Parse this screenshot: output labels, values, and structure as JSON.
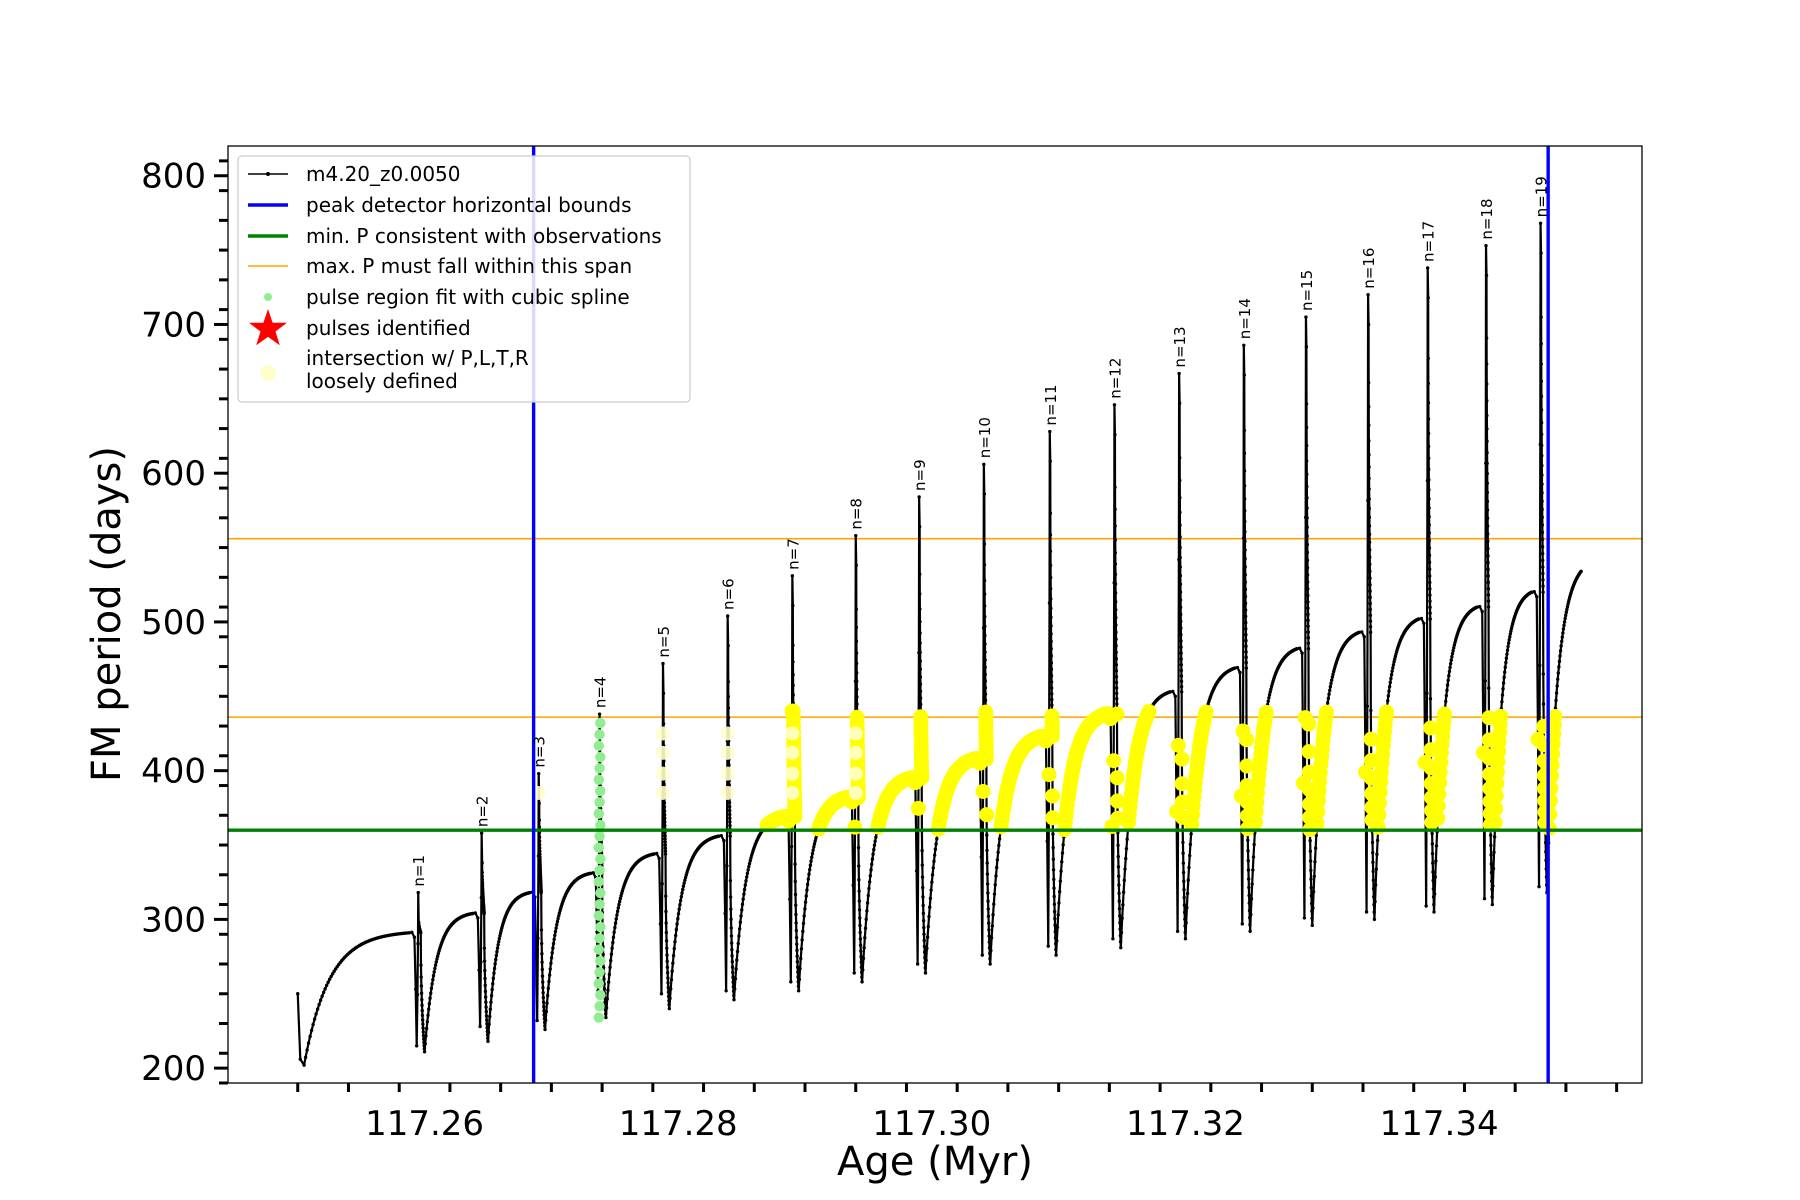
{
  "chart_data": {
    "type": "line",
    "title": "",
    "xlabel": "Age (Myr)",
    "ylabel": "FM period (days)",
    "xlim": [
      117.2445,
      117.356
    ],
    "ylim": [
      190,
      820
    ],
    "xticks": [
      117.26,
      117.28,
      117.3,
      117.32,
      117.34
    ],
    "xtick_labels": [
      "117.26",
      "117.28",
      "117.30",
      "117.32",
      "117.34"
    ],
    "xminor_step": 0.004,
    "yticks": [
      200,
      300,
      400,
      500,
      600,
      700,
      800
    ],
    "ytick_labels": [
      "200",
      "300",
      "400",
      "500",
      "600",
      "700",
      "800"
    ],
    "yminor_step": 20,
    "grid": false,
    "legend_position": "top-left",
    "colors": {
      "model_line": "#000000",
      "peak_bounds": "#0000ff",
      "min_period": "#008000",
      "max_period_span": "#ffa500",
      "spline_fit": "#90ee90",
      "pulses_identified": "#ff0000",
      "intersection": "#ffff00",
      "loosely_defined": "#ffffcc"
    },
    "legend": [
      {
        "key": "model",
        "label": "m4.20_z0.0050"
      },
      {
        "key": "bounds",
        "label": "peak detector horizontal bounds"
      },
      {
        "key": "minP",
        "label": "min. P consistent with observations"
      },
      {
        "key": "maxP",
        "label": "max. P must fall within this span"
      },
      {
        "key": "spline",
        "label": "pulse region fit with cubic spline"
      },
      {
        "key": "pulses",
        "label": "pulses identified"
      },
      {
        "key": "intersection",
        "label": "intersection w/ P,L,T,R"
      },
      {
        "key": "loose",
        "label": "loosely defined"
      }
    ],
    "vertical_bounds_x": [
      117.2686,
      117.3486
    ],
    "min_period_y": 360,
    "max_period_span_y": [
      436,
      556
    ],
    "start": {
      "x": 117.25,
      "y": 250
    },
    "end": {
      "x": 117.3512,
      "y": 534
    },
    "pulses": [
      {
        "label": "n=1",
        "x": 117.2595,
        "peak": 318,
        "drop": 215,
        "trough": 211,
        "pre": 291
      },
      {
        "label": "n=2",
        "x": 117.2645,
        "peak": 358,
        "drop": 228,
        "trough": 218,
        "pre": 304
      },
      {
        "label": "n=3",
        "x": 117.269,
        "peak": 398,
        "drop": 232,
        "trough": 226,
        "pre": 318
      },
      {
        "label": "n=4",
        "x": 117.2738,
        "peak": 438,
        "drop": 252,
        "trough": 234,
        "pre": 331
      },
      {
        "label": "n=5",
        "x": 117.2788,
        "peak": 472,
        "drop": 250,
        "trough": 240,
        "pre": 344
      },
      {
        "label": "n=6",
        "x": 117.2839,
        "peak": 504,
        "drop": 252,
        "trough": 246,
        "pre": 356
      },
      {
        "label": "n=7",
        "x": 117.289,
        "peak": 531,
        "drop": 258,
        "trough": 252,
        "pre": 369
      },
      {
        "label": "n=8",
        "x": 117.294,
        "peak": 558,
        "drop": 264,
        "trough": 258,
        "pre": 382
      },
      {
        "label": "n=9",
        "x": 117.299,
        "peak": 584,
        "drop": 270,
        "trough": 264,
        "pre": 395
      },
      {
        "label": "n=10",
        "x": 117.3041,
        "peak": 606,
        "drop": 276,
        "trough": 270,
        "pre": 408
      },
      {
        "label": "n=11",
        "x": 117.3093,
        "peak": 628,
        "drop": 282,
        "trough": 276,
        "pre": 423
      },
      {
        "label": "n=12",
        "x": 117.3144,
        "peak": 646,
        "drop": 287,
        "trough": 281,
        "pre": 438
      },
      {
        "label": "n=13",
        "x": 117.3195,
        "peak": 667,
        "drop": 292,
        "trough": 287,
        "pre": 453
      },
      {
        "label": "n=14",
        "x": 117.3246,
        "peak": 686,
        "drop": 297,
        "trough": 292,
        "pre": 469
      },
      {
        "label": "n=15",
        "x": 117.3295,
        "peak": 705,
        "drop": 301,
        "trough": 296,
        "pre": 482
      },
      {
        "label": "n=16",
        "x": 117.3344,
        "peak": 720,
        "drop": 305,
        "trough": 300,
        "pre": 493
      },
      {
        "label": "n=17",
        "x": 117.3391,
        "peak": 738,
        "drop": 309,
        "trough": 305,
        "pre": 502
      },
      {
        "label": "n=18",
        "x": 117.3437,
        "peak": 753,
        "drop": 314,
        "trough": 310,
        "pre": 510
      },
      {
        "label": "n=19",
        "x": 117.348,
        "peak": 768,
        "drop": 322,
        "trough": 318,
        "pre": 520
      }
    ],
    "pulse_labels_shown": [
      "n=1",
      "n=2",
      "n=3",
      "n=4",
      "n=5",
      "n=6",
      "n=7",
      "n=8",
      "n=9",
      "n=10",
      "n=11",
      "n=12",
      "n=13",
      "n=14",
      "n=15",
      "n=16",
      "n=17",
      "n=18",
      "n=19"
    ]
  }
}
